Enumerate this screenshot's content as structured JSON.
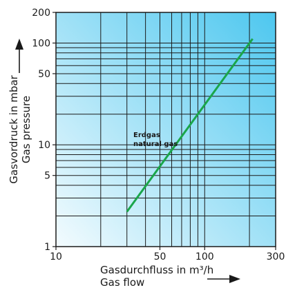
{
  "chart_data": {
    "type": "line",
    "x_axis": {
      "scale": "log",
      "range": [
        10,
        300
      ],
      "tick_values": [
        10,
        50,
        100,
        300
      ],
      "tick_labels": [
        "10",
        "50",
        "100",
        "300"
      ],
      "gridlines": [
        10,
        20,
        30,
        40,
        50,
        60,
        70,
        80,
        90,
        100,
        200,
        300
      ],
      "label_line1": "Gasdurchfluss in m³/h",
      "label_line2": "Gas flow"
    },
    "y_axis": {
      "scale": "log",
      "range": [
        1,
        200
      ],
      "tick_values": [
        1,
        5,
        10,
        50,
        100,
        200
      ],
      "tick_labels": [
        "1",
        "5",
        "10",
        "50",
        "100",
        "200"
      ],
      "gridlines": [
        1,
        2,
        3,
        4,
        5,
        6,
        7,
        8,
        9,
        10,
        20,
        30,
        40,
        50,
        60,
        70,
        80,
        90,
        100,
        200
      ],
      "label_line1": "Gasvordruck in mbar",
      "label_line2": "Gas pressure"
    },
    "series": [
      {
        "name_line1": "Erdgas",
        "name_line2": "natural gas",
        "color": "#1aa64a",
        "x": [
          30,
          210
        ],
        "y": [
          2.2,
          110
        ]
      }
    ],
    "grid": true,
    "background_gradient": {
      "from": "#f3fbfe",
      "to": "#4dc7ef"
    }
  }
}
